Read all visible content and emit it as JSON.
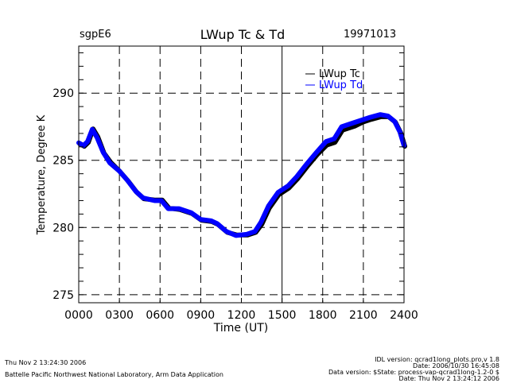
{
  "header": {
    "site": "sgpE6",
    "title": "LWup Tc & Td",
    "date": "19971013"
  },
  "footer": {
    "left_line1": "Thu Nov  2 13:24:30 2006",
    "left_line2": "Battelle Pacific Northwest National Laboratory, Arm Data Application",
    "right_lines": [
      "IDL version: qcrad1long_plots.pro,v 1.8",
      "Date: 2006/10/30 16:45:08",
      "Data version: $State: process-vap-qcrad1long-1.2-0 $",
      "Date: Thu Nov  2 13:24:12 2006"
    ]
  },
  "colors": {
    "tc": "#000000",
    "td": "#0000ff",
    "axis": "#000000",
    "background": "#ffffff"
  },
  "chart_data": {
    "type": "line",
    "title": "LWup Tc & Td",
    "xlabel": "Time (UT)",
    "ylabel": "Temperature, Degree K",
    "xlim": [
      0,
      24
    ],
    "ylim": [
      274.4,
      293.5
    ],
    "x_ticks": [
      0,
      3,
      6,
      9,
      12,
      15,
      18,
      21,
      24
    ],
    "x_tick_labels": [
      "0000",
      "0300",
      "0600",
      "0900",
      "1200",
      "1500",
      "1800",
      "2100",
      "2400"
    ],
    "y_ticks": [
      275,
      280,
      285,
      290
    ],
    "y_tick_labels": [
      "275",
      "280",
      "285",
      "290"
    ],
    "y_minor_step": 1,
    "grid": true,
    "legend_position": "top-right",
    "series": [
      {
        "name": "LWup Tc",
        "color": "#000000",
        "x": [
          0,
          0.35,
          0.65,
          1.0,
          1.35,
          1.8,
          2.3,
          3.0,
          3.6,
          4.2,
          4.75,
          5.6,
          6.1,
          6.6,
          7.4,
          8.3,
          9.0,
          9.75,
          10.2,
          10.9,
          11.6,
          12.4,
          13.0,
          13.45,
          14.0,
          14.7,
          15.45,
          16.1,
          16.8,
          17.55,
          18.25,
          18.85,
          19.4,
          20.3,
          20.9,
          21.5,
          22.25,
          22.8,
          23.3,
          23.7,
          24.0
        ],
        "y": [
          286.3,
          286.1,
          286.4,
          287.4,
          286.8,
          285.6,
          284.9,
          284.2,
          283.5,
          282.7,
          282.2,
          282.1,
          282.1,
          281.5,
          281.4,
          281.1,
          280.6,
          280.5,
          280.3,
          279.7,
          279.5,
          279.5,
          279.7,
          280.3,
          281.5,
          282.5,
          283.0,
          283.7,
          284.6,
          285.5,
          286.2,
          286.4,
          287.3,
          287.6,
          287.9,
          288.1,
          288.3,
          288.3,
          287.9,
          287.1,
          286.1
        ]
      },
      {
        "name": "LWup Td",
        "color": "#0000ff",
        "x": [
          0,
          0.35,
          0.65,
          1.0,
          1.35,
          1.8,
          2.3,
          3.0,
          3.6,
          4.2,
          4.75,
          5.6,
          6.1,
          6.6,
          7.4,
          8.3,
          9.0,
          9.75,
          10.2,
          10.9,
          11.6,
          12.4,
          13.0,
          13.45,
          14.0,
          14.7,
          15.45,
          16.1,
          16.8,
          17.55,
          18.25,
          18.85,
          19.4,
          20.3,
          20.9,
          21.5,
          22.25,
          22.8,
          23.3,
          23.7,
          24.0
        ],
        "y": [
          286.3,
          286.1,
          286.4,
          287.3,
          286.7,
          285.6,
          284.8,
          284.2,
          283.5,
          282.7,
          282.2,
          282.0,
          282.0,
          281.4,
          281.4,
          281.1,
          280.6,
          280.5,
          280.3,
          279.7,
          279.4,
          279.5,
          279.7,
          280.4,
          281.6,
          282.6,
          283.1,
          283.8,
          284.7,
          285.6,
          286.4,
          286.6,
          287.5,
          287.8,
          288.0,
          288.2,
          288.4,
          288.3,
          287.9,
          287.1,
          286.1
        ]
      }
    ]
  }
}
